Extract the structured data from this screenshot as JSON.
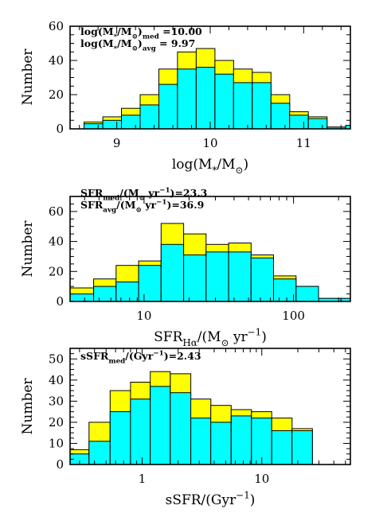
{
  "chart_data": [
    {
      "type": "bar",
      "title": "",
      "ylabel": "Number",
      "xlabel": {
        "main": "log(M",
        "sub1": "*",
        "mid": "/M",
        "sub2": "⊙",
        "end": ")"
      },
      "xscale": "linear",
      "xlim": [
        8.5,
        11.5
      ],
      "ylim": [
        0,
        60
      ],
      "xticks": [
        {
          "v": 9,
          "label": "9"
        },
        {
          "v": 10,
          "label": "10"
        },
        {
          "v": 11,
          "label": "11"
        }
      ],
      "yticks": [
        {
          "v": 0,
          "label": "0"
        },
        {
          "v": 20,
          "label": "20"
        },
        {
          "v": 40,
          "label": "40"
        },
        {
          "v": 60,
          "label": "60"
        }
      ],
      "annotations": [
        {
          "pre": "log(M",
          "s1": "*",
          "mid": "/M",
          "s2": "⊙",
          "post": ")",
          "s3": "med",
          "val": " =10.00"
        },
        {
          "pre": "log(M",
          "s1": "*",
          "mid": "/M",
          "s2": "⊙",
          "post": ")",
          "s3": "avg",
          "val": " = 9.97"
        }
      ],
      "bins": [
        {
          "x0": 8.65,
          "x1": 8.85,
          "total": 4,
          "cyan": 3
        },
        {
          "x0": 8.85,
          "x1": 9.05,
          "total": 7,
          "cyan": 5
        },
        {
          "x0": 9.05,
          "x1": 9.25,
          "total": 12,
          "cyan": 8
        },
        {
          "x0": 9.25,
          "x1": 9.45,
          "total": 20,
          "cyan": 14
        },
        {
          "x0": 9.45,
          "x1": 9.65,
          "total": 35,
          "cyan": 26
        },
        {
          "x0": 9.65,
          "x1": 9.85,
          "total": 45,
          "cyan": 35
        },
        {
          "x0": 9.85,
          "x1": 10.05,
          "total": 47,
          "cyan": 36
        },
        {
          "x0": 10.05,
          "x1": 10.25,
          "total": 40,
          "cyan": 32
        },
        {
          "x0": 10.25,
          "x1": 10.45,
          "total": 35,
          "cyan": 27
        },
        {
          "x0": 10.45,
          "x1": 10.65,
          "total": 33,
          "cyan": 27
        },
        {
          "x0": 10.65,
          "x1": 10.85,
          "total": 20,
          "cyan": 15
        },
        {
          "x0": 10.85,
          "x1": 11.05,
          "total": 10,
          "cyan": 8
        },
        {
          "x0": 11.05,
          "x1": 11.25,
          "total": 7,
          "cyan": 6
        },
        {
          "x0": 11.25,
          "x1": 11.45,
          "total": 1,
          "cyan": 1
        },
        {
          "x0": 11.45,
          "x1": 11.5,
          "total": 2,
          "cyan": 2
        }
      ]
    },
    {
      "type": "bar",
      "title": "",
      "ylabel": "Number",
      "xlabel": {
        "main": "SFR",
        "sub1": "Hα",
        "mid": "/(M",
        "sub2": "⊙",
        "end": " yr",
        "sup": "−1",
        "close": ")"
      },
      "xscale": "log",
      "xlim": [
        3.2,
        240
      ],
      "ylim": [
        0,
        70
      ],
      "xticks": [
        {
          "v": 10,
          "label": "10"
        },
        {
          "v": 100,
          "label": "100"
        }
      ],
      "yticks": [
        {
          "v": 0,
          "label": "0"
        },
        {
          "v": 20,
          "label": "20"
        },
        {
          "v": 40,
          "label": "40"
        },
        {
          "v": 60,
          "label": "60"
        }
      ],
      "annotations": [
        {
          "pre": "SFR",
          "s1": "med",
          "mid": "/(M",
          "s2": "⊙",
          "post": " yr",
          "sup": "−1",
          "val": ")=23.3"
        },
        {
          "pre": "SFR",
          "s1": "avg",
          "mid": "/(M",
          "s2": "⊙",
          "post": " yr",
          "sup": "−1",
          "val": ")=36.9"
        }
      ],
      "bins": [
        {
          "x0": 3.2,
          "x1": 4.6,
          "total": 9,
          "cyan": 5
        },
        {
          "x0": 4.6,
          "x1": 6.5,
          "total": 15,
          "cyan": 10
        },
        {
          "x0": 6.5,
          "x1": 9.2,
          "total": 24,
          "cyan": 13
        },
        {
          "x0": 9.2,
          "x1": 13.0,
          "total": 27,
          "cyan": 24
        },
        {
          "x0": 13.0,
          "x1": 18.4,
          "total": 52,
          "cyan": 38
        },
        {
          "x0": 18.4,
          "x1": 26.0,
          "total": 45,
          "cyan": 31
        },
        {
          "x0": 26.0,
          "x1": 36.8,
          "total": 38,
          "cyan": 33
        },
        {
          "x0": 36.8,
          "x1": 52.0,
          "total": 39,
          "cyan": 33
        },
        {
          "x0": 52.0,
          "x1": 73.5,
          "total": 31,
          "cyan": 29
        },
        {
          "x0": 73.5,
          "x1": 104,
          "total": 17,
          "cyan": 15
        },
        {
          "x0": 104,
          "x1": 147,
          "total": 10,
          "cyan": 10
        },
        {
          "x0": 147,
          "x1": 208,
          "total": 2,
          "cyan": 2
        },
        {
          "x0": 208,
          "x1": 240,
          "total": 2,
          "cyan": 2
        }
      ]
    },
    {
      "type": "bar",
      "title": "",
      "ylabel": "Number",
      "xlabel": {
        "main": "sSFR/(Gyr",
        "sup": "−1",
        "close": ")"
      },
      "xscale": "log",
      "xlim": [
        0.25,
        55
      ],
      "ylim": [
        0,
        55
      ],
      "xticks": [
        {
          "v": 1,
          "label": "1"
        },
        {
          "v": 10,
          "label": "10"
        }
      ],
      "yticks": [
        {
          "v": 0,
          "label": "0"
        },
        {
          "v": 10,
          "label": "10"
        },
        {
          "v": 20,
          "label": "20"
        },
        {
          "v": 30,
          "label": "30"
        },
        {
          "v": 40,
          "label": "40"
        },
        {
          "v": 50,
          "label": "50"
        }
      ],
      "annotations": [
        {
          "pre": "sSFR",
          "s1": "med",
          "mid": "/(Gyr",
          "sup": "−1",
          "val": ")=2.43"
        }
      ],
      "bins": [
        {
          "x0": 0.25,
          "x1": 0.36,
          "total": 7,
          "cyan": 5
        },
        {
          "x0": 0.36,
          "x1": 0.54,
          "total": 20,
          "cyan": 11
        },
        {
          "x0": 0.54,
          "x1": 0.8,
          "total": 35,
          "cyan": 25
        },
        {
          "x0": 0.8,
          "x1": 1.17,
          "total": 39,
          "cyan": 31
        },
        {
          "x0": 1.17,
          "x1": 1.72,
          "total": 44,
          "cyan": 37
        },
        {
          "x0": 1.72,
          "x1": 2.55,
          "total": 43,
          "cyan": 34
        },
        {
          "x0": 2.55,
          "x1": 3.75,
          "total": 31,
          "cyan": 22
        },
        {
          "x0": 3.75,
          "x1": 5.55,
          "total": 28,
          "cyan": 20
        },
        {
          "x0": 5.55,
          "x1": 8.2,
          "total": 26,
          "cyan": 23
        },
        {
          "x0": 8.2,
          "x1": 12.1,
          "total": 25,
          "cyan": 22
        },
        {
          "x0": 12.1,
          "x1": 17.9,
          "total": 22,
          "cyan": 16
        },
        {
          "x0": 17.9,
          "x1": 26.5,
          "total": 17,
          "cyan": 16
        }
      ]
    }
  ],
  "colors": {
    "yellow": "#ffff00",
    "cyan": "#00ffff",
    "stroke": "#000000"
  }
}
